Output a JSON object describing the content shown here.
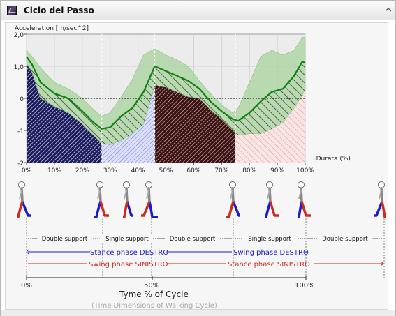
{
  "window": {
    "title": "Ciclo del Passo"
  },
  "chart_data": {
    "type": "area",
    "ylabel": "Acceleration [m/sec^2]",
    "xlabel": "...Durata (%)",
    "ylim": [
      -2,
      2
    ],
    "xlim": [
      0,
      100
    ],
    "yticks": [
      "2,0",
      "1,0",
      "0",
      "-1",
      "-2"
    ],
    "xticks": [
      "0%",
      "10%",
      "20%",
      "30%",
      "40%",
      "50%",
      "60%",
      "70%",
      "80%",
      "90%",
      "100%"
    ],
    "grid": true,
    "x": [
      0,
      2,
      5,
      10,
      15,
      20,
      24,
      27,
      30,
      34,
      38,
      42,
      46,
      50,
      54,
      58,
      62,
      66,
      70,
      74,
      76,
      80,
      84,
      88,
      92,
      96,
      99,
      100
    ],
    "series": [
      {
        "values": [
          1.3,
          1.05,
          0.5,
          0.15,
          0.0,
          -0.4,
          -0.75,
          -0.95,
          -0.9,
          -0.55,
          -0.3,
          0.2,
          1.0,
          0.85,
          0.7,
          0.55,
          0.3,
          -0.1,
          -0.4,
          -0.65,
          -0.7,
          -0.45,
          -0.1,
          0.2,
          0.3,
          0.7,
          1.15,
          1.1
        ]
      },
      {
        "values": [
          1.5,
          1.3,
          0.95,
          0.5,
          0.3,
          0.0,
          -0.35,
          -0.55,
          -0.45,
          0.05,
          0.6,
          1.35,
          1.55,
          1.35,
          1.2,
          1.0,
          0.55,
          0.15,
          -0.2,
          -0.45,
          -0.3,
          0.5,
          1.3,
          1.5,
          1.35,
          1.5,
          1.9,
          1.9
        ]
      },
      {
        "values": [
          1.1,
          0.8,
          0.0,
          -0.25,
          -0.45,
          -0.8,
          -1.15,
          -1.4,
          -1.45,
          -1.3,
          -1.1,
          -0.8,
          0.4,
          0.35,
          0.2,
          0.05,
          0.0,
          -0.35,
          -0.65,
          -1.0,
          -1.15,
          -1.1,
          -1.1,
          -0.95,
          -0.75,
          -0.3,
          0.1,
          0.3
        ]
      }
    ],
    "phase_lines": [
      0,
      27,
      46,
      75,
      100
    ]
  },
  "gait": {
    "phases": [
      "Double support",
      "Single support",
      "Double support",
      "Single support",
      "Double support"
    ],
    "stance_right": "Stance phase DESTRO",
    "swing_right": "Swing phase DESTRO",
    "swing_left": "Swing phase SINISTRO",
    "stance_left": "Stance phase SINISTRO",
    "percent_labels": [
      "0%",
      "50%",
      "100%"
    ],
    "x_title": "Tyme % of Cycle",
    "x_subtitle": "(Time Dimensions of Walking Cycle)"
  },
  "colors": {
    "band": "#a8d49c",
    "mean_line": "#108010",
    "stance_blue": "#1a1acc",
    "swing_red": "#cc2a1a",
    "phase_fills": [
      "#1a1a60",
      "#aab0ee",
      "#3a1010",
      "#f0c0c0"
    ]
  }
}
